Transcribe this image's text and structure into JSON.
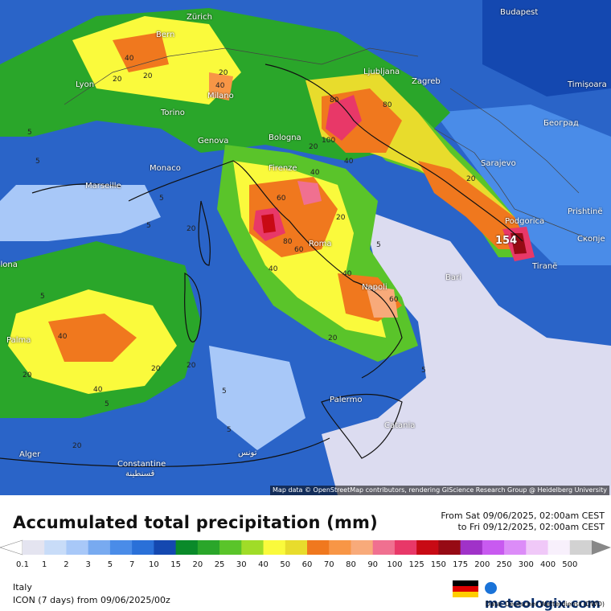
{
  "title": "Accumulated total precipitation (mm)",
  "period": {
    "from": "From Sat 09/06/2025, 02:00am CEST",
    "to": "to Fri 09/12/2025, 02:00am CEST"
  },
  "attribution": "Map data © OpenStreetMap contributors, rendering GIScience Research Group @ Heidelberg University",
  "region": "Italy",
  "model": "ICON (7 days)  from  09/06/2025/00z",
  "brand": "meteologix.com",
  "data_source": "Data: Deutscher Wetterdienst (DWD)",
  "scale": {
    "values": [
      "0.1",
      "1",
      "2",
      "3",
      "5",
      "7",
      "10",
      "15",
      "20",
      "25",
      "30",
      "40",
      "50",
      "60",
      "70",
      "80",
      "90",
      "100",
      "125",
      "150",
      "175",
      "200",
      "250",
      "300",
      "400",
      "500"
    ],
    "colors": [
      "#e4e4f0",
      "#c8dcf8",
      "#a8c8f8",
      "#78aaf0",
      "#4a8ce8",
      "#2a70d8",
      "#1448b0",
      "#0a8a2a",
      "#2aa62a",
      "#5ac42a",
      "#a0dc28",
      "#fafa3c",
      "#e8dc2c",
      "#f0781e",
      "#f89646",
      "#f8aa7a",
      "#f07090",
      "#e83868",
      "#c80a14",
      "#960a14",
      "#a032c8",
      "#c85af0",
      "#dc8cf8",
      "#f0c8f8",
      "#f8f0fc",
      "#d2d2d2"
    ]
  },
  "cities": [
    {
      "name": "Zürich"
    },
    {
      "name": "Bern"
    },
    {
      "name": "Budapest"
    },
    {
      "name": "Lyon"
    },
    {
      "name": "Milano"
    },
    {
      "name": "Ljubljana"
    },
    {
      "name": "Zagreb"
    },
    {
      "name": "Timișoara"
    },
    {
      "name": "Torino"
    },
    {
      "name": "Genova"
    },
    {
      "name": "Bologna"
    },
    {
      "name": "Београд"
    },
    {
      "name": "Monaco"
    },
    {
      "name": "Marseille"
    },
    {
      "name": "Firenze"
    },
    {
      "name": "Sarajevo"
    },
    {
      "name": "Podgorica"
    },
    {
      "name": "Prishtinë"
    },
    {
      "name": "Roma"
    },
    {
      "name": "Скопје"
    },
    {
      "name": "Tiranë"
    },
    {
      "name": "Bari"
    },
    {
      "name": "Napoli"
    },
    {
      "name": "Barcelona"
    },
    {
      "name": "Palma"
    },
    {
      "name": "Palermo"
    },
    {
      "name": "Catania"
    },
    {
      "name": "Alger"
    },
    {
      "name": "Constantine"
    },
    {
      "name": "قسنطينة"
    },
    {
      "name": "تونس"
    }
  ],
  "contour_labels": [
    "20",
    "40",
    "20",
    "5",
    "20",
    "40",
    "80",
    "5",
    "100",
    "40",
    "20",
    "60",
    "80",
    "40",
    "60",
    "20",
    "5",
    "20",
    "40",
    "80",
    "154",
    "5",
    "20",
    "60",
    "40",
    "20",
    "5",
    "40",
    "20",
    "40",
    "20",
    "5",
    "5",
    "20",
    "5",
    "5",
    "20",
    "5"
  ],
  "max_value": "154"
}
